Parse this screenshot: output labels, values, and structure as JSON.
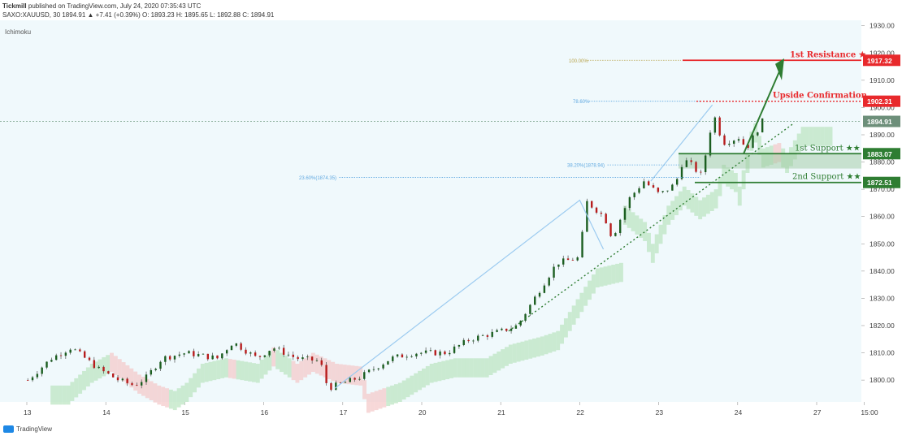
{
  "header": {
    "line1_publisher": "Tickmill",
    "line1_rest": "published on TradingView.com, July 24, 2020 07:35:43 UTC",
    "symbol_line": "SAXO:XAUUSD, 30  1894.91  ▲ +7.41 (+0.39%)  O: 1893.23  H: 1895.65  L: 1892.88  C: 1894.91"
  },
  "indicator_label": "Ichimoku",
  "footer": {
    "brand": "TradingView"
  },
  "colors": {
    "resistance": "#e8292c",
    "support": "#2e7d32",
    "cloud_green": "#b9e4bf",
    "cloud_red": "#f3c7c7",
    "fib_line": "#5fa8e0",
    "arrow": "#2e7d32",
    "price_tag": "#6d8f7a"
  },
  "chart_data": {
    "type": "candlestick",
    "symbol": "SAXO:XAUUSD",
    "timeframe": "30",
    "ylim": [
      1792,
      1932
    ],
    "y_ticks": [
      1800,
      1810,
      1820,
      1830,
      1840,
      1850,
      1860,
      1870,
      1880,
      1890,
      1900,
      1910,
      1920,
      1930
    ],
    "x_ticks": [
      "13",
      "14",
      "15",
      "16",
      "17",
      "20",
      "21",
      "22",
      "23",
      "24",
      "27",
      "15:00"
    ],
    "price_path": [
      [
        0,
        1800
      ],
      [
        0.3,
        1808
      ],
      [
        0.55,
        1812
      ],
      [
        0.9,
        1804
      ],
      [
        1.15,
        1800
      ],
      [
        1.35,
        1798
      ],
      [
        1.5,
        1801
      ],
      [
        1.7,
        1808
      ],
      [
        2.0,
        1810
      ],
      [
        2.4,
        1808
      ],
      [
        2.6,
        1814
      ],
      [
        2.9,
        1808
      ],
      [
        3.1,
        1812
      ],
      [
        3.4,
        1808
      ],
      [
        3.7,
        1807
      ],
      [
        3.8,
        1797
      ],
      [
        4.2,
        1801
      ],
      [
        4.6,
        1808
      ],
      [
        4.9,
        1810
      ],
      [
        5.3,
        1810
      ],
      [
        5.6,
        1815
      ],
      [
        6.0,
        1818
      ],
      [
        6.2,
        1820
      ],
      [
        6.5,
        1834
      ],
      [
        6.7,
        1843
      ],
      [
        7.0,
        1845
      ],
      [
        7.05,
        1866
      ],
      [
        7.3,
        1860
      ],
      [
        7.4,
        1852
      ],
      [
        7.6,
        1866
      ],
      [
        7.8,
        1873
      ],
      [
        8.0,
        1868
      ],
      [
        8.2,
        1872
      ],
      [
        8.3,
        1881
      ],
      [
        8.45,
        1878
      ],
      [
        8.5,
        1873
      ],
      [
        8.6,
        1885
      ],
      [
        8.68,
        1898
      ],
      [
        8.8,
        1887
      ],
      [
        9.0,
        1889
      ],
      [
        9.1,
        1885
      ],
      [
        9.3,
        1894.91
      ]
    ],
    "current_price": 1894.91,
    "levels": [
      {
        "name": "1st Resistance ★",
        "value": 1917.32,
        "tag": "1917.32",
        "kind": "resistance"
      },
      {
        "name": "Upside Confirmation",
        "value": 1902.31,
        "tag": "1902.31",
        "kind": "resistance"
      },
      {
        "name": "1st Support ★★",
        "value": 1883.07,
        "tag": "1883.07",
        "kind": "support"
      },
      {
        "name": "2nd Support ★★",
        "value": 1872.51,
        "tag": "1872.51",
        "kind": "support"
      }
    ],
    "current_tag": "1894.91",
    "fib_labels": [
      {
        "label": "100.00%",
        "value": 1917.32
      },
      {
        "label": "78.60%",
        "value": 1902.31
      },
      {
        "label": "38.20%(1878.94)",
        "value": 1878.94
      },
      {
        "label": "23.60%(1874.35)",
        "value": 1874.35
      }
    ]
  }
}
